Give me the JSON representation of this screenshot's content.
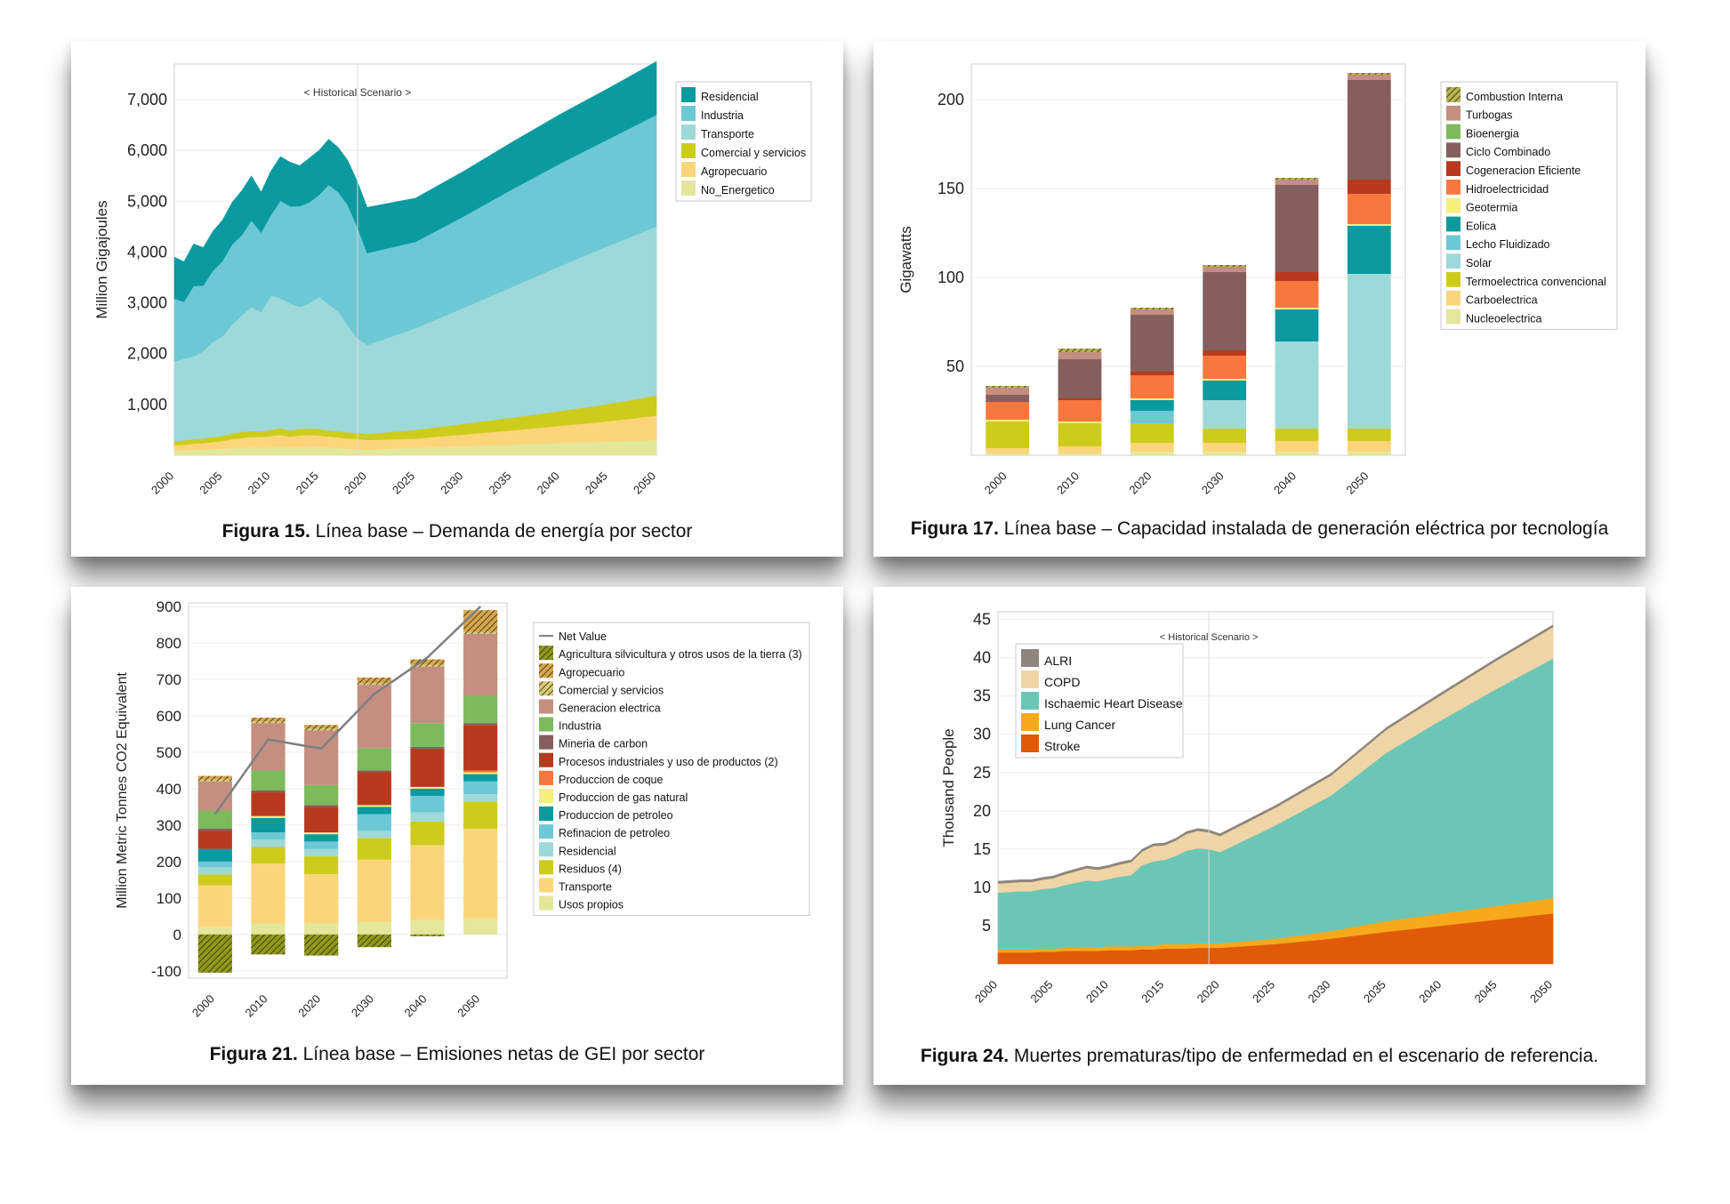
{
  "figures": {
    "f15": {
      "num": "Figura 15.",
      "text": " Línea base – Demanda de energía por sector"
    },
    "f17": {
      "num": "Figura 17.",
      "text": " Línea base – Capacidad instalada de generación eléctrica por tecnología"
    },
    "f21": {
      "num": "Figura 21.",
      "text": " Línea base – Emisiones netas de GEI por sector"
    },
    "f24": {
      "num": "Figura 24.",
      "text": " Muertes prematuras/tipo de enfermedad en el escenario de referencia."
    }
  },
  "chart_data": [
    {
      "id": "f15",
      "type": "area",
      "stacked": true,
      "ylabel": "Million Gigajoules",
      "annotation": "< Historical   Scenario >",
      "split_x": 2019,
      "x": [
        2000,
        2001,
        2002,
        2003,
        2004,
        2005,
        2006,
        2007,
        2008,
        2009,
        2010,
        2011,
        2012,
        2013,
        2014,
        2015,
        2016,
        2017,
        2018,
        2019,
        2020,
        2025,
        2030,
        2035,
        2040,
        2045,
        2050
      ],
      "xticks": [
        2000,
        2005,
        2010,
        2015,
        2020,
        2025,
        2030,
        2035,
        2040,
        2045,
        2050
      ],
      "yticks": [
        1000,
        2000,
        3000,
        4000,
        5000,
        6000,
        7000
      ],
      "yticklabels": [
        "1,000",
        "2,000",
        "3,000",
        "4,000",
        "5,000",
        "6,000",
        "7,000"
      ],
      "ylim": [
        0,
        7700
      ],
      "xlim": [
        2000,
        2050
      ],
      "series": [
        {
          "name": "No_Energetico",
          "color": "#e3e79a",
          "values": [
            100,
            100,
            110,
            110,
            120,
            130,
            140,
            150,
            160,
            150,
            160,
            170,
            160,
            160,
            170,
            170,
            150,
            140,
            130,
            120,
            110,
            150,
            180,
            210,
            240,
            270,
            300
          ]
        },
        {
          "name": "Agropecuario",
          "color": "#fcd57a",
          "values": [
            100,
            110,
            120,
            130,
            140,
            150,
            180,
            190,
            200,
            210,
            220,
            230,
            210,
            230,
            230,
            220,
            220,
            210,
            200,
            200,
            190,
            180,
            230,
            280,
            340,
            400,
            480
          ]
        },
        {
          "name": "Comercial y servicios",
          "color": "#cdcc1d",
          "values": [
            80,
            80,
            90,
            90,
            100,
            100,
            110,
            120,
            120,
            110,
            120,
            130,
            120,
            130,
            130,
            130,
            120,
            120,
            120,
            120,
            120,
            170,
            210,
            250,
            290,
            340,
            400
          ]
        },
        {
          "name": "Transporte",
          "color": "#9dd9d8",
          "values": [
            1560,
            1610,
            1620,
            1720,
            1870,
            1960,
            2140,
            2290,
            2440,
            2350,
            2640,
            2560,
            2500,
            2400,
            2460,
            2600,
            2480,
            2360,
            2100,
            1860,
            1750,
            2000,
            2280,
            2570,
            2850,
            3110,
            3320
          ]
        },
        {
          "name": "Industria",
          "color": "#6dc8d6",
          "values": [
            1240,
            1120,
            1390,
            1290,
            1400,
            1480,
            1580,
            1580,
            1700,
            1560,
            1580,
            1920,
            1910,
            1980,
            1990,
            2000,
            2350,
            2350,
            2370,
            2180,
            1810,
            1700,
            1800,
            1920,
            2020,
            2100,
            2200
          ]
        },
        {
          "name": "Residencial",
          "color": "#0b9a9f",
          "values": [
            820,
            790,
            830,
            750,
            780,
            810,
            830,
            880,
            880,
            800,
            870,
            870,
            870,
            800,
            870,
            880,
            900,
            880,
            880,
            900,
            900,
            860,
            890,
            930,
            970,
            1000,
            1050
          ]
        }
      ]
    },
    {
      "id": "f17",
      "type": "bar",
      "stacked": true,
      "ylabel": "Gigawatts",
      "categories": [
        "2000",
        "2010",
        "2020",
        "2030",
        "2040",
        "2050"
      ],
      "yticks": [
        50,
        100,
        150,
        200
      ],
      "ylim": [
        0,
        220
      ],
      "series": [
        {
          "name": "Nucleoelectrica",
          "color": "#e3e79a",
          "values": [
            1,
            1,
            2,
            2,
            2,
            2
          ]
        },
        {
          "name": "Carboelectrica",
          "color": "#fcd57a",
          "values": [
            3,
            4,
            5,
            5,
            6,
            6
          ]
        },
        {
          "name": "Termoelectrica convencional",
          "color": "#cdcc1d",
          "values": [
            15,
            13,
            11,
            8,
            7,
            7
          ]
        },
        {
          "name": "Solar",
          "color": "#9dd9d8",
          "values": [
            0,
            0,
            0,
            16,
            49,
            87
          ]
        },
        {
          "name": "Lecho Fluidizado",
          "color": "#6dc8d6",
          "values": [
            0,
            0,
            7,
            0,
            0,
            0
          ]
        },
        {
          "name": "Eolica",
          "color": "#0b9a9f",
          "values": [
            0,
            0,
            6,
            11,
            18,
            27
          ]
        },
        {
          "name": "Geotermia",
          "color": "#f5f07a",
          "values": [
            1,
            1,
            1,
            1,
            1,
            1
          ]
        },
        {
          "name": "Hidroelectricidad",
          "color": "#f8773e",
          "values": [
            10,
            12,
            13,
            13,
            15,
            17
          ]
        },
        {
          "name": "Cogeneracion Eficiente",
          "color": "#b83a1e",
          "values": [
            0,
            1,
            2,
            3,
            5,
            8
          ]
        },
        {
          "name": "Ciclo Combinado",
          "color": "#855f5d",
          "values": [
            4,
            22,
            32,
            44,
            49,
            56
          ]
        },
        {
          "name": "Bioenergia",
          "color": "#7cba5c",
          "values": [
            0,
            0,
            0,
            0,
            0,
            0
          ]
        },
        {
          "name": "Turbogas",
          "color": "#c48e80",
          "values": [
            4,
            4,
            3,
            3,
            3,
            3
          ]
        },
        {
          "name": "Combustion Interna",
          "color": "#b5b450",
          "pattern": true,
          "values": [
            1,
            2,
            1,
            1,
            1,
            1
          ]
        }
      ]
    },
    {
      "id": "f21",
      "type": "bar",
      "stacked": true,
      "ylabel": "Million Metric Tonnes CO2 Equivalent",
      "categories": [
        "2000",
        "2010",
        "2020",
        "2030",
        "2040",
        "2050"
      ],
      "yticks": [
        -100,
        0,
        100,
        200,
        300,
        400,
        500,
        600,
        700,
        800,
        900
      ],
      "ylim": [
        -120,
        910
      ],
      "net_value": {
        "name": "Net Value",
        "color": "#7f7f7f",
        "values": [
          330,
          535,
          510,
          660,
          760,
          900
        ]
      },
      "negative": {
        "name": "Agricultura silvicultura y otros usos de la tierra (3)",
        "color": "#8f9a1c",
        "pattern": true,
        "values": [
          -105,
          -55,
          -58,
          -35,
          -5,
          0
        ]
      },
      "series": [
        {
          "name": "Usos propios",
          "color": "#e3e79a",
          "values": [
            20,
            30,
            30,
            35,
            40,
            45
          ]
        },
        {
          "name": "Transporte",
          "color": "#fcd57a",
          "values": [
            115,
            165,
            135,
            170,
            205,
            245
          ]
        },
        {
          "name": "Residuos (4)",
          "color": "#cdcc1d",
          "values": [
            30,
            45,
            50,
            60,
            65,
            75
          ]
        },
        {
          "name": "Residencial",
          "color": "#9dd9d8",
          "values": [
            20,
            20,
            20,
            20,
            25,
            20
          ]
        },
        {
          "name": "Refinacion de petroleo",
          "color": "#6dc8d6",
          "values": [
            15,
            20,
            20,
            45,
            45,
            35
          ]
        },
        {
          "name": "Produccion de petroleo",
          "color": "#0b9a9f",
          "values": [
            35,
            40,
            20,
            20,
            20,
            20
          ]
        },
        {
          "name": "Produccion de gas natural",
          "color": "#f5f07a",
          "values": [
            0,
            5,
            5,
            5,
            5,
            5
          ]
        },
        {
          "name": "Produccion de coque",
          "color": "#f8773e",
          "values": [
            0,
            0,
            0,
            0,
            0,
            5
          ]
        },
        {
          "name": "Procesos industriales y uso de productos (2)",
          "color": "#b83a1e",
          "values": [
            50,
            65,
            70,
            90,
            105,
            125
          ]
        },
        {
          "name": "Mineria de carbon",
          "color": "#855f5d",
          "values": [
            5,
            5,
            5,
            5,
            5,
            5
          ]
        },
        {
          "name": "Industria",
          "color": "#7cba5c",
          "values": [
            50,
            55,
            55,
            60,
            65,
            75
          ]
        },
        {
          "name": "Generacion electrica",
          "color": "#c48e80",
          "values": [
            80,
            130,
            150,
            175,
            155,
            170
          ]
        },
        {
          "name": "Comercial y servicios",
          "color": "#d9c874",
          "pattern": true,
          "values": [
            5,
            5,
            5,
            5,
            5,
            5
          ]
        },
        {
          "name": "Agropecuario",
          "color": "#d8a54e",
          "pattern": true,
          "values": [
            10,
            10,
            10,
            15,
            15,
            60
          ]
        }
      ]
    },
    {
      "id": "f24",
      "type": "area",
      "stacked": true,
      "ylabel": "Thousand People",
      "annotation": "< Historical   Scenario >",
      "split_x": 2019,
      "x": [
        2000,
        2001,
        2002,
        2003,
        2004,
        2005,
        2006,
        2007,
        2008,
        2009,
        2010,
        2011,
        2012,
        2013,
        2014,
        2015,
        2016,
        2017,
        2018,
        2019,
        2020,
        2025,
        2030,
        2035,
        2040,
        2045,
        2050
      ],
      "xticks": [
        2000,
        2005,
        2010,
        2015,
        2020,
        2025,
        2030,
        2035,
        2040,
        2045,
        2050
      ],
      "yticks": [
        5,
        10,
        15,
        20,
        25,
        30,
        35,
        40,
        45
      ],
      "ylim": [
        0,
        46
      ],
      "xlim": [
        2000,
        2050
      ],
      "series": [
        {
          "name": "Stroke",
          "color": "#e05a0a",
          "values": [
            1.5,
            1.5,
            1.5,
            1.5,
            1.6,
            1.6,
            1.7,
            1.7,
            1.7,
            1.7,
            1.8,
            1.8,
            1.8,
            1.9,
            1.9,
            2.0,
            2.0,
            2.0,
            2.1,
            2.1,
            2.1,
            2.6,
            3.3,
            4.2,
            5.0,
            5.8,
            6.6
          ]
        },
        {
          "name": "Lung Cancer",
          "color": "#f7a81b",
          "values": [
            0.4,
            0.4,
            0.4,
            0.4,
            0.4,
            0.4,
            0.4,
            0.4,
            0.5,
            0.5,
            0.5,
            0.5,
            0.5,
            0.5,
            0.5,
            0.6,
            0.6,
            0.6,
            0.6,
            0.6,
            0.6,
            0.7,
            1.0,
            1.4,
            1.6,
            1.8,
            2.0
          ]
        },
        {
          "name": "Ischaemic Heart Disease",
          "color": "#6cc6b6",
          "values": [
            7.4,
            7.5,
            7.6,
            7.6,
            7.8,
            7.9,
            8.2,
            8.5,
            8.7,
            8.6,
            8.8,
            9.1,
            9.3,
            10.5,
            11.0,
            11.0,
            11.5,
            12.2,
            12.4,
            12.3,
            11.9,
            14.8,
            17.7,
            22.0,
            25.3,
            28.4,
            31.3
          ]
        },
        {
          "name": "COPD",
          "color": "#efd5a6",
          "values": [
            1.2,
            1.2,
            1.2,
            1.2,
            1.2,
            1.3,
            1.4,
            1.5,
            1.6,
            1.5,
            1.5,
            1.6,
            1.7,
            1.8,
            2.0,
            1.9,
            2.0,
            2.2,
            2.3,
            2.2,
            2.1,
            2.3,
            2.6,
            3.0,
            3.3,
            3.7,
            4.1
          ]
        },
        {
          "name": "ALRI",
          "color": "#8f857c",
          "values": [
            0.3,
            0.3,
            0.3,
            0.3,
            0.3,
            0.3,
            0.3,
            0.3,
            0.3,
            0.3,
            0.3,
            0.3,
            0.3,
            0.3,
            0.3,
            0.3,
            0.3,
            0.3,
            0.3,
            0.3,
            0.3,
            0.3,
            0.3,
            0.3,
            0.3,
            0.3,
            0.3
          ]
        }
      ]
    }
  ]
}
